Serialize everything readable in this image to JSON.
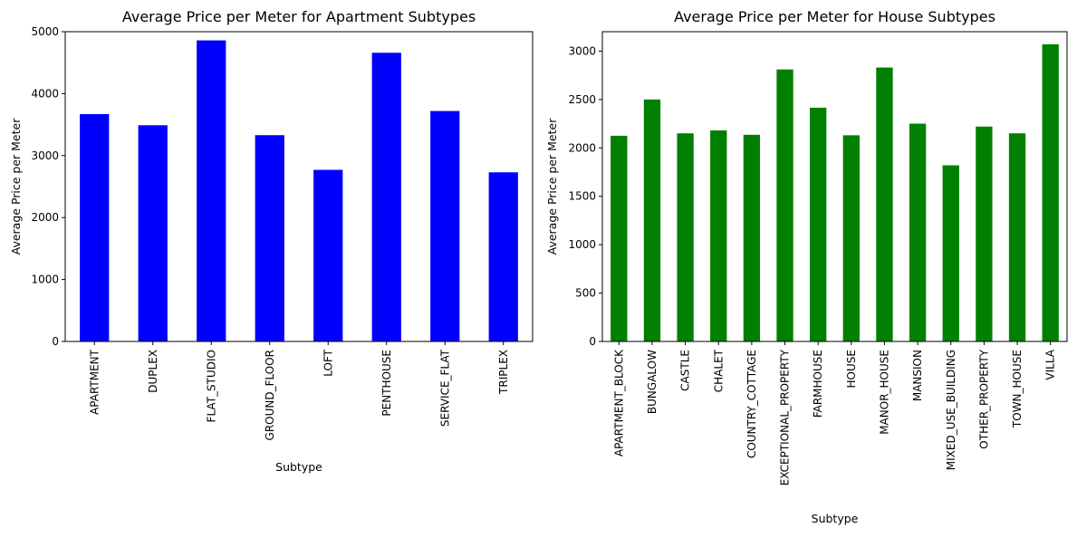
{
  "chart_data": [
    {
      "type": "bar",
      "title": "Average Price per Meter for Apartment Subtypes",
      "xlabel": "Subtype",
      "ylabel": "Average Price per Meter",
      "categories": [
        "APARTMENT",
        "DUPLEX",
        "FLAT_STUDIO",
        "GROUND_FLOOR",
        "LOFT",
        "PENTHOUSE",
        "SERVICE_FLAT",
        "TRIPLEX"
      ],
      "values": [
        3670,
        3490,
        4860,
        3330,
        2770,
        4660,
        3720,
        2730
      ],
      "ylim": [
        0,
        5000
      ],
      "yticks": [
        0,
        1000,
        2000,
        3000,
        4000,
        5000
      ],
      "bar_color": "#0000ff",
      "grid": false
    },
    {
      "type": "bar",
      "title": "Average Price per Meter for House Subtypes",
      "xlabel": "Subtype",
      "ylabel": "Average Price per Meter",
      "categories": [
        "APARTMENT_BLOCK",
        "BUNGALOW",
        "CASTLE",
        "CHALET",
        "COUNTRY_COTTAGE",
        "EXCEPTIONAL_PROPERTY",
        "FARMHOUSE",
        "HOUSE",
        "MANOR_HOUSE",
        "MANSION",
        "MIXED_USE_BUILDING",
        "OTHER_PROPERTY",
        "TOWN_HOUSE",
        "VILLA"
      ],
      "values": [
        2125,
        2500,
        2150,
        2180,
        2135,
        2810,
        2415,
        2130,
        2830,
        2250,
        1820,
        2220,
        2150,
        3070
      ],
      "ylim": [
        0,
        3200
      ],
      "yticks": [
        0,
        500,
        1000,
        1500,
        2000,
        2500,
        3000
      ],
      "bar_color": "#008000",
      "grid": false
    }
  ]
}
